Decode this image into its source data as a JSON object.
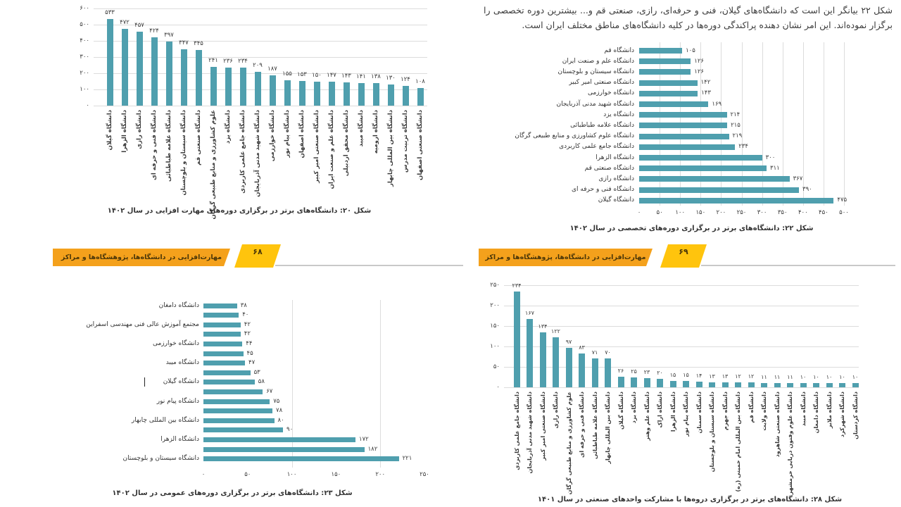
{
  "colors": {
    "bar_teal": "#4F9FAE",
    "gridline": "#dcdcdc",
    "banner_main": "#F4A11C",
    "banner_badge": "#FFC40D",
    "background": "#ffffff"
  },
  "intro": {
    "text": "شکل ۲۲ بیانگر این است که دانشگاه‌های گیلان، فنی و حرفه‌ای، رازی، صنعتی قم و... بیشترین دوره تخصصی را برگزار نموده‌اند. این امر نشان دهنده پراکندگی دوره‌ها در کلیه دانشگاه‌های مناطق مختلف ایران است."
  },
  "banners": {
    "left": {
      "title": "مهارت‌افزایی در دانشگاه‌ها، پژوهشگاه‌ها و مراکز آموزش عالی کشور",
      "page": "۶۸"
    },
    "right": {
      "title": "مهارت‌افزایی در دانشگاه‌ها، پژوهشگاه‌ها و مراکز آموزش عالی کشور",
      "page": "۶۹"
    }
  },
  "chart_data": [
    {
      "id": "figure-20",
      "type": "bar",
      "orientation": "vertical",
      "title": "شکل ۲۰: دانشگاه‌های برتر در برگزاری دوره‌های مهارت افزایی در سال ۱۴۰۲",
      "categories": [
        "دانشگاه گیلان",
        "دانشگاه الزهرا",
        "دانشگاه رازی",
        "دانشگاه فنی و حرفه ای",
        "دانشگاه علامه طباطبائی",
        "دانشگاه سیستان و بلوچستان",
        "دانشگاه صنعتی قم",
        "علوم کشاورزی و منابع طبیعی گرگان",
        "دانشگاه یزد",
        "دانشگاه جامع علمی کاربردی",
        "دانشگاه شهید مدنی آذربایجان",
        "دانشگاه خوارزمی",
        "دانشگاه پیام نور",
        "دانشگاه اصفهان",
        "دانشگاه صنعتی امیر کبیر",
        "دانشگاه علم و صنعت ایران",
        "دانشگاه محقق اردبیلی",
        "دانشگاه میبد",
        "دانشگاه ارومیه",
        "دانشگاه بین المللی چابهار",
        "دانشگاه تربیت مدرس",
        "دانشگاه صنعتی اصفهان"
      ],
      "values": [
        533,
        472,
        457,
        424,
        397,
        347,
        345,
        241,
        236,
        234,
        209,
        187,
        155,
        153,
        150,
        147,
        143,
        141,
        138,
        130,
        124,
        108
      ],
      "ylim": [
        0,
        600
      ],
      "ytick_step": 100,
      "grid": true,
      "digit_style": "persian"
    },
    {
      "id": "figure-22",
      "type": "bar",
      "orientation": "horizontal",
      "title": "شکل ۲۲: دانشگاه‌های برتر در برگزاری دوره‌های تخصصی در سال ۱۴۰۲",
      "categories": [
        "دانشگاه قم",
        "دانشگاه علم و صنعت ایران",
        "دانشگاه سیستان و بلوچستان",
        "دانشگاه صنعتی امیر کبیر",
        "دانشگاه خوارزمی",
        "دانشگاه شهید مدنی آذربایجان",
        "دانشگاه یزد",
        "دانشگاه علامه طباطبائی",
        "دانشگاه علوم کشاورزی و منابع طبیعی گرگان",
        "دانشگاه جامع علمی کاربردی",
        "دانشگاه الزهرا",
        "دانشگاه صنعتی قم",
        "دانشگاه رازی",
        "دانشگاه فنی و حرفه ای",
        "دانشگاه گیلان"
      ],
      "values": [
        105,
        126,
        126,
        142,
        143,
        169,
        214,
        215,
        219,
        234,
        300,
        311,
        367,
        390,
        475
      ],
      "xlim": [
        0,
        500
      ],
      "xtick_step": 50,
      "grid": true,
      "digit_style": "persian"
    },
    {
      "id": "figure-23",
      "type": "bar",
      "orientation": "horizontal",
      "title": "شکل ۲۳: دانشگاه‌های برتر در برگزاری دوره‌های عمومی در سال ۱۴۰۲",
      "categories": [
        "دانشگاه دامغان",
        "",
        "مجتمع آموزش عالی فنی مهندسی اسفراین",
        "",
        "دانشگاه خوارزمی",
        "",
        "دانشگاه میبد",
        "",
        "دانشگاه گیلان",
        "",
        "دانشگاه پیام نور",
        "",
        "دانشگاه بین المللی چابهار",
        "",
        "دانشگاه الزهرا",
        "",
        "دانشگاه سیستان و بلوچستان"
      ],
      "values": [
        38,
        40,
        42,
        42,
        44,
        45,
        47,
        53,
        58,
        67,
        75,
        78,
        80,
        90,
        172,
        182,
        221
      ],
      "xlim": [
        0,
        250
      ],
      "xtick_step": 50,
      "gridlines_at": [
        100,
        200
      ],
      "digit_style": "persian"
    },
    {
      "id": "figure-28",
      "type": "bar",
      "orientation": "vertical",
      "title": "شکل ۲۸: دانشگاه‌های برتر در برگزاری دروه‌ها با مشارکت واحدهای صنعتی در سال ۱۴۰۱",
      "categories": [
        "دانشگاه جامع علمی کاربردی",
        "دانشگاه شهید مدنی آذربایجان",
        "دانشگاه صنعتی امیر کبیر",
        "دانشگاه رازی",
        "علوم کشاورزی و منابع طبیعی گرگان",
        "دانشگاه فنی و حرفه ای",
        "دانشگاه علامه طباطبائی",
        "دانشگاه بین المللی چابهار",
        "دانشگاه گیلان",
        "دانشگاه یزد",
        "دانشگاه علم وهنر",
        "دانشگاه اراک",
        "دانشگاه الزهرا",
        "دانشگاه پیام نور",
        "دانشگاه سمنان",
        "دانشگاه سیستان و بلوچستان",
        "دانشگاه جهرم",
        "دانشگاه بین المللی امام خمینی (ره)",
        "دانشگاه قم",
        "دانشگاه ولایت",
        "دانشگاه صنعتی شاهرود",
        "دانشگاه علوم وفنون دریایی خرمشهر",
        "دانشگاه میبد",
        "دانشگاه دامغان",
        "دانشگاه ملایر",
        "دانشگاه شهرکرد",
        "دانشگاه کردستان"
      ],
      "values": [
        234,
        167,
        134,
        122,
        97,
        83,
        71,
        70,
        26,
        25,
        23,
        20,
        15,
        15,
        14,
        13,
        13,
        12,
        12,
        11,
        11,
        11,
        10,
        10,
        10,
        10,
        10
      ],
      "ylim": [
        0,
        250
      ],
      "ytick_step": 50,
      "grid": true,
      "digit_style": "persian"
    }
  ]
}
